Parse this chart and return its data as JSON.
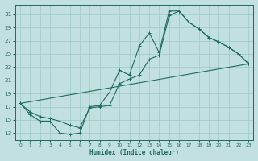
{
  "title": "",
  "xlabel": "Humidex (Indice chaleur)",
  "xlim": [
    -0.5,
    23.5
  ],
  "ylim": [
    12.0,
    32.5
  ],
  "xticks": [
    0,
    1,
    2,
    3,
    4,
    5,
    6,
    7,
    8,
    9,
    10,
    11,
    12,
    13,
    14,
    15,
    16,
    17,
    18,
    19,
    20,
    21,
    22,
    23
  ],
  "yticks": [
    13,
    15,
    17,
    19,
    21,
    23,
    25,
    27,
    29,
    31
  ],
  "bg_color": "#c2e0e0",
  "grid_color": "#9cc8c8",
  "line_color": "#1e6b5e",
  "line1_x": [
    0,
    1,
    2,
    3,
    4,
    5,
    6,
    7,
    8,
    9,
    10,
    11,
    12,
    13,
    14,
    15,
    16,
    17,
    18,
    19,
    20,
    21,
    22,
    23
  ],
  "line1_y": [
    17.5,
    15.8,
    14.8,
    14.8,
    13.0,
    12.8,
    13.0,
    17.0,
    17.2,
    19.2,
    22.5,
    21.8,
    26.2,
    28.2,
    25.2,
    31.5,
    31.5,
    29.8,
    28.8,
    27.5,
    26.8,
    26.0,
    25.0,
    23.5
  ],
  "line2_x": [
    0,
    1,
    2,
    3,
    4,
    5,
    6,
    7,
    8,
    9,
    10,
    11,
    12,
    13,
    14,
    15,
    16,
    17,
    18,
    19,
    20,
    21,
    22,
    23
  ],
  "line2_y": [
    17.5,
    16.2,
    15.5,
    15.2,
    14.8,
    14.2,
    13.8,
    16.8,
    17.0,
    17.2,
    20.5,
    21.2,
    21.8,
    24.2,
    24.8,
    30.8,
    31.5,
    29.8,
    28.8,
    27.5,
    26.8,
    26.0,
    25.0,
    23.5
  ],
  "line3_x": [
    0,
    23
  ],
  "line3_y": [
    17.5,
    23.5
  ]
}
